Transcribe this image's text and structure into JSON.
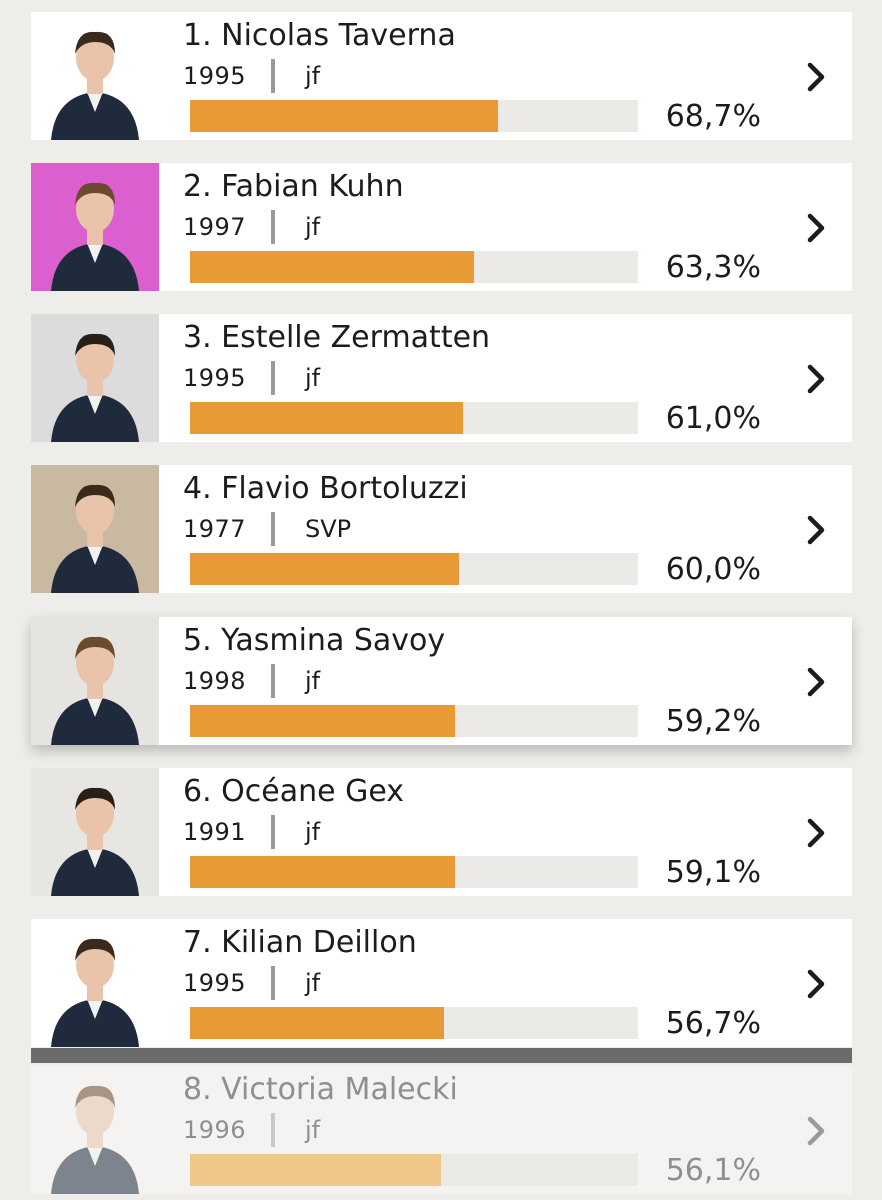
{
  "candidates": [
    {
      "rank_name": "1. Nicolas Taverna",
      "year": "1995",
      "party": "jf",
      "percent": "68,7%",
      "value": 68.7,
      "photo_bg": "#ffffff",
      "state": "normal"
    },
    {
      "rank_name": "2. Fabian Kuhn",
      "year": "1997",
      "party": "jf",
      "percent": "63,3%",
      "value": 63.3,
      "photo_bg": "#dc5fcf",
      "state": "normal"
    },
    {
      "rank_name": "3. Estelle Zermatten",
      "year": "1995",
      "party": "jf",
      "percent": "61,0%",
      "value": 61.0,
      "photo_bg": "#dcdcdc",
      "state": "normal"
    },
    {
      "rank_name": "4. Flavio Bortoluzzi",
      "year": "1977",
      "party": "SVP",
      "percent": "60,0%",
      "value": 60.0,
      "photo_bg": "#c9b9a0",
      "state": "normal"
    },
    {
      "rank_name": "5. Yasmina Savoy",
      "year": "1998",
      "party": "jf",
      "percent": "59,2%",
      "value": 59.2,
      "photo_bg": "#e6e4e0",
      "state": "selected"
    },
    {
      "rank_name": "6. Océane Gex",
      "year": "1991",
      "party": "jf",
      "percent": "59,1%",
      "value": 59.1,
      "photo_bg": "#e8e6e2",
      "state": "normal"
    },
    {
      "rank_name": "7. Kilian Deillon",
      "year": "1995",
      "party": "jf",
      "percent": "56,7%",
      "value": 56.7,
      "photo_bg": "#ffffff",
      "state": "normal"
    },
    {
      "rank_name": "8. Victoria Malecki",
      "year": "1996",
      "party": "jf",
      "percent": "56,1%",
      "value": 56.1,
      "photo_bg": "#f4f3f1",
      "state": "faded"
    }
  ],
  "bar_max": 100,
  "colors": {
    "bar_fill": "#e89a36",
    "bar_track": "#eceae6",
    "background": "#eeedea",
    "divider": "#6b6b6b"
  },
  "icons": {
    "chevron": "chevron-right-icon",
    "photo": "avatar"
  }
}
